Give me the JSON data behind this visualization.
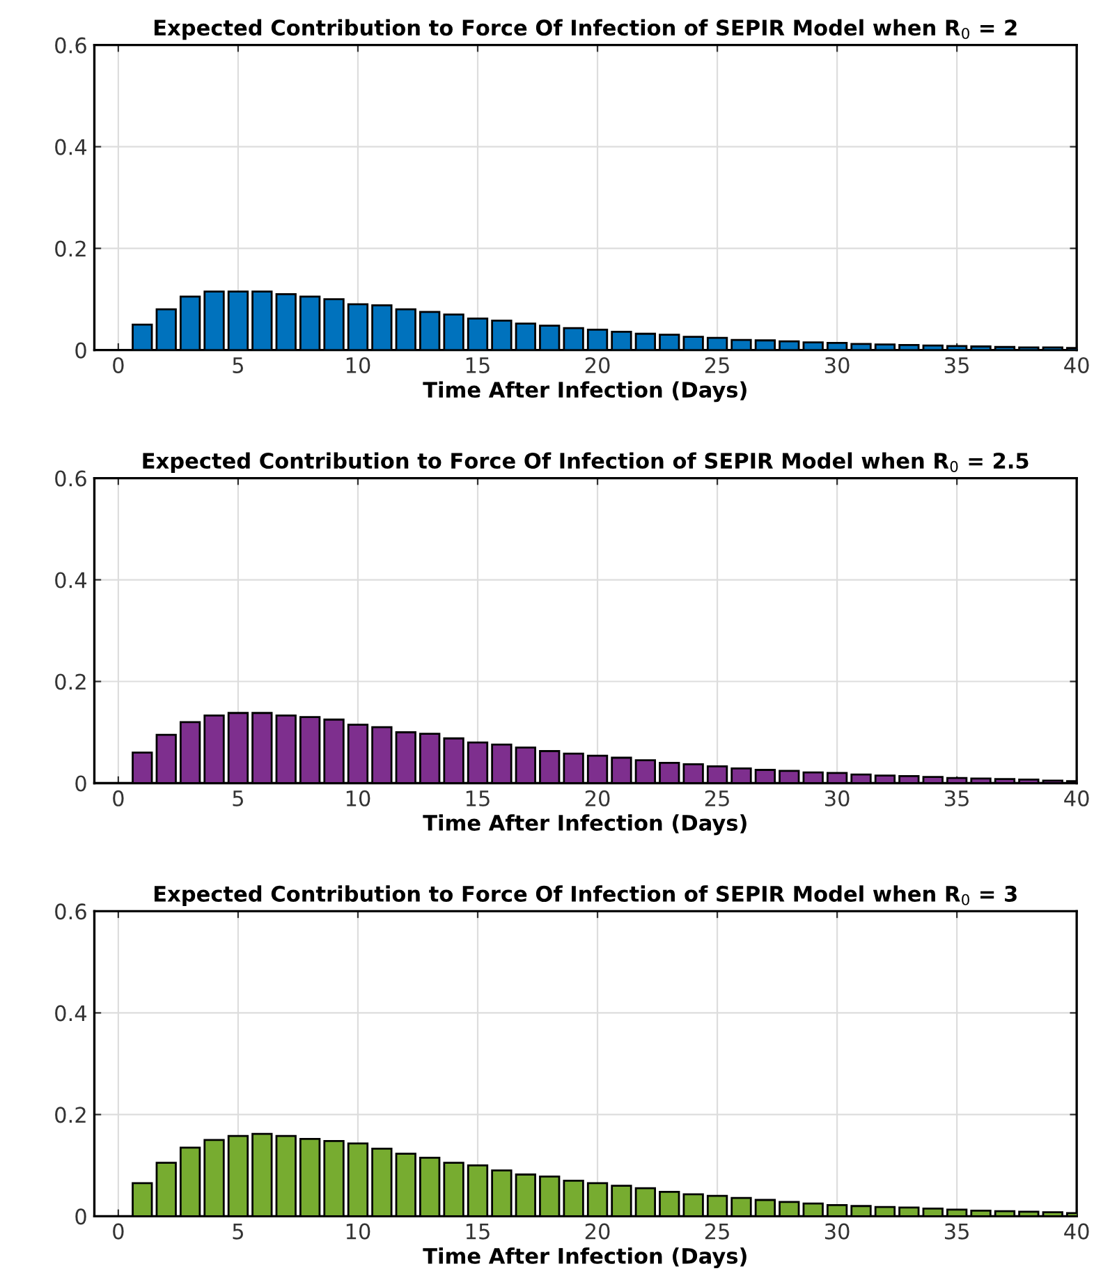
{
  "chart_data": [
    {
      "type": "bar",
      "title": "Expected Contribution to Force Of Infection of SEPIR Model when R$_{0}$ = 2",
      "xlabel": "Time After Infection (Days)",
      "x": [
        1,
        2,
        3,
        4,
        5,
        6,
        7,
        8,
        9,
        10,
        11,
        12,
        13,
        14,
        15,
        16,
        17,
        18,
        19,
        20,
        21,
        22,
        23,
        24,
        25,
        26,
        27,
        28,
        29,
        30,
        31,
        32,
        33,
        34,
        35,
        36,
        37,
        38,
        39,
        40
      ],
      "series": [
        {
          "color": "#0072bd",
          "values": [
            0.05,
            0.08,
            0.105,
            0.115,
            0.115,
            0.115,
            0.11,
            0.105,
            0.1,
            0.09,
            0.088,
            0.08,
            0.075,
            0.07,
            0.062,
            0.058,
            0.052,
            0.048,
            0.043,
            0.04,
            0.036,
            0.032,
            0.03,
            0.026,
            0.024,
            0.02,
            0.019,
            0.017,
            0.015,
            0.014,
            0.012,
            0.011,
            0.01,
            0.009,
            0.008,
            0.007,
            0.006,
            0.005,
            0.005,
            0.004
          ]
        }
      ],
      "xlim": [
        -1,
        40
      ],
      "xticks": [
        0,
        5,
        10,
        15,
        20,
        25,
        30,
        35,
        40
      ],
      "ylim": [
        0,
        0.6
      ],
      "yticks": [
        0,
        0.2,
        0.4,
        0.6
      ],
      "grid": true
    },
    {
      "type": "bar",
      "title": "Expected Contribution to Force Of Infection of SEPIR Model when R$_{0}$ = 2.5",
      "xlabel": "Time After Infection (Days)",
      "x": [
        1,
        2,
        3,
        4,
        5,
        6,
        7,
        8,
        9,
        10,
        11,
        12,
        13,
        14,
        15,
        16,
        17,
        18,
        19,
        20,
        21,
        22,
        23,
        24,
        25,
        26,
        27,
        28,
        29,
        30,
        31,
        32,
        33,
        34,
        35,
        36,
        37,
        38,
        39,
        40
      ],
      "series": [
        {
          "color": "#7e2f8e",
          "values": [
            0.06,
            0.095,
            0.12,
            0.133,
            0.138,
            0.138,
            0.133,
            0.13,
            0.125,
            0.115,
            0.11,
            0.1,
            0.097,
            0.088,
            0.08,
            0.076,
            0.07,
            0.063,
            0.058,
            0.054,
            0.05,
            0.045,
            0.04,
            0.037,
            0.033,
            0.029,
            0.026,
            0.024,
            0.021,
            0.02,
            0.017,
            0.015,
            0.014,
            0.012,
            0.01,
            0.009,
            0.008,
            0.007,
            0.005,
            0.004
          ]
        }
      ],
      "xlim": [
        -1,
        40
      ],
      "xticks": [
        0,
        5,
        10,
        15,
        20,
        25,
        30,
        35,
        40
      ],
      "ylim": [
        0,
        0.6
      ],
      "yticks": [
        0,
        0.2,
        0.4,
        0.6
      ],
      "grid": true
    },
    {
      "type": "bar",
      "title": "Expected Contribution to Force Of Infection of SEPIR Model when R$_{0}$ = 3",
      "xlabel": "Time After Infection (Days)",
      "x": [
        1,
        2,
        3,
        4,
        5,
        6,
        7,
        8,
        9,
        10,
        11,
        12,
        13,
        14,
        15,
        16,
        17,
        18,
        19,
        20,
        21,
        22,
        23,
        24,
        25,
        26,
        27,
        28,
        29,
        30,
        31,
        32,
        33,
        34,
        35,
        36,
        37,
        38,
        39,
        40
      ],
      "series": [
        {
          "color": "#77ac30",
          "values": [
            0.065,
            0.105,
            0.135,
            0.15,
            0.158,
            0.162,
            0.158,
            0.152,
            0.148,
            0.143,
            0.133,
            0.123,
            0.115,
            0.105,
            0.1,
            0.09,
            0.082,
            0.078,
            0.07,
            0.065,
            0.06,
            0.055,
            0.048,
            0.043,
            0.04,
            0.036,
            0.032,
            0.028,
            0.025,
            0.022,
            0.02,
            0.018,
            0.017,
            0.015,
            0.013,
            0.011,
            0.01,
            0.009,
            0.008,
            0.006
          ]
        }
      ],
      "xlim": [
        -1,
        40
      ],
      "xticks": [
        0,
        5,
        10,
        15,
        20,
        25,
        30,
        35,
        40
      ],
      "ylim": [
        0,
        0.6
      ],
      "yticks": [
        0,
        0.2,
        0.4,
        0.6
      ],
      "grid": true
    }
  ]
}
